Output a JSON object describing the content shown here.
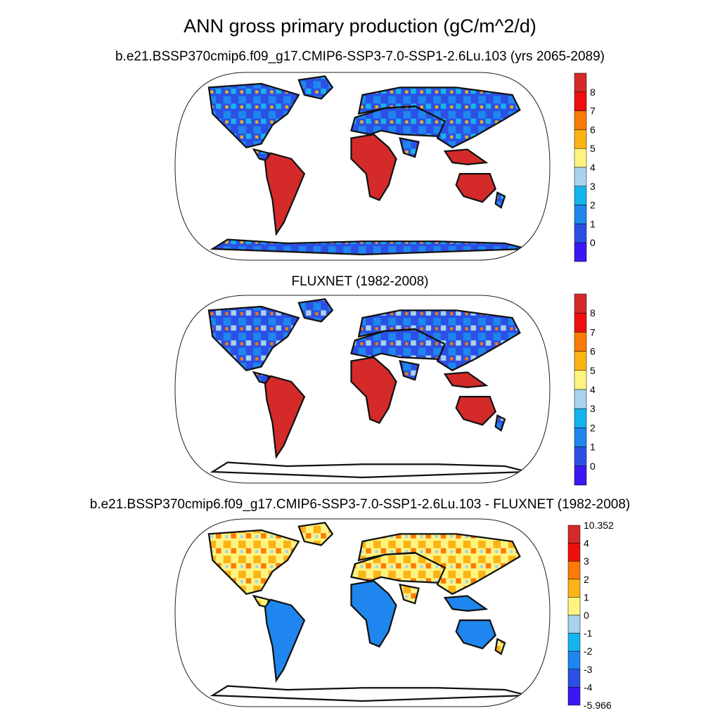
{
  "figure": {
    "title": "ANN gross primary production (gC/m^2/d)",
    "panels": [
      {
        "title": "b.e21.BSSP370cmip6.f09_g17.CMIP6-SSP3-7.0-SSP1-2.6Lu.103 (yrs 2065-2089)",
        "colorbar": {
          "labels": [
            "8",
            "7",
            "6",
            "5",
            "4",
            "3",
            "2",
            "1",
            "0"
          ],
          "colors": [
            "#d42a2a",
            "#ee1010",
            "#fc7a05",
            "#fbb315",
            "#fdf47f",
            "#a8d2ee",
            "#16b4ee",
            "#1e86ee",
            "#2c50e5",
            "#3b18f3"
          ]
        }
      },
      {
        "title": "FLUXNET (1982-2008)",
        "colorbar": {
          "labels": [
            "8",
            "7",
            "6",
            "5",
            "4",
            "3",
            "2",
            "1",
            "0"
          ],
          "colors": [
            "#d42a2a",
            "#ee1010",
            "#fc7a05",
            "#fbb315",
            "#fdf47f",
            "#a8d2ee",
            "#16b4ee",
            "#1e86ee",
            "#2c50e5",
            "#3b18f3"
          ]
        }
      },
      {
        "title": "b.e21.BSSP370cmip6.f09_g17.CMIP6-SSP3-7.0-SSP1-2.6Lu.103 - FLUXNET (1982-2008)",
        "colorbar": {
          "labels": [
            "10.352",
            "4",
            "3",
            "2",
            "1",
            "0",
            "-1",
            "-2",
            "-3",
            "-4",
            "-5.966"
          ],
          "colors": [
            "#d42a2a",
            "#ee1010",
            "#fc7a05",
            "#fbb315",
            "#fdf47f",
            "#a8d2ee",
            "#16b4ee",
            "#1e86ee",
            "#2c50e5",
            "#3b18f3"
          ]
        }
      }
    ]
  }
}
